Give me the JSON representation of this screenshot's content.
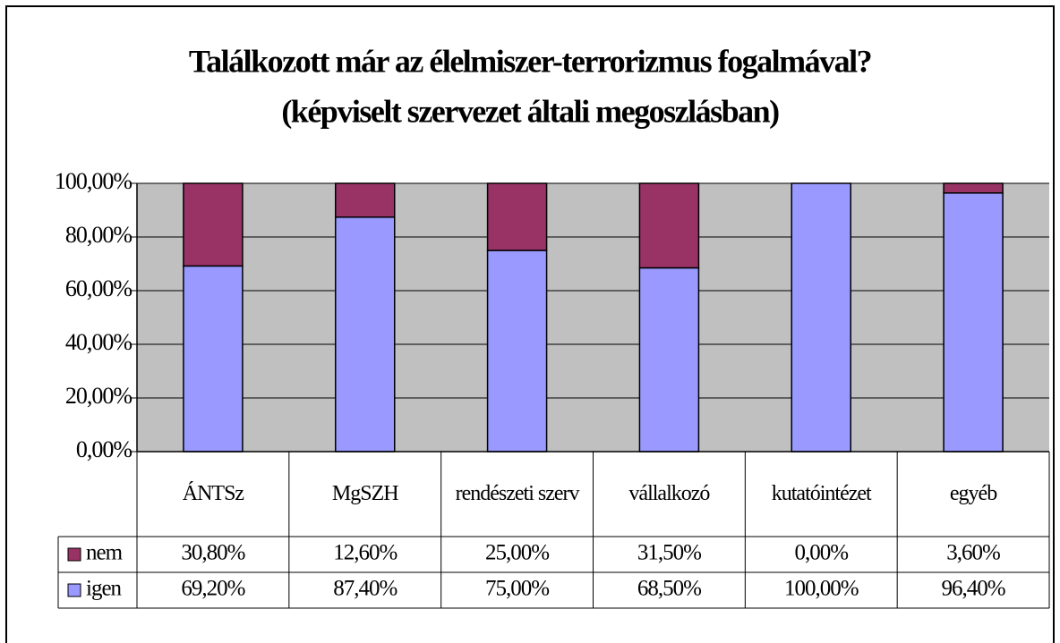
{
  "chart_data": {
    "type": "bar",
    "stacked": true,
    "title": "Találkozott már az élelmiszer-terrorizmus fogalmával?",
    "subtitle": "(képviselt szervezet általi megoszlásban)",
    "categories": [
      "ÁNTSz",
      "MgSZH",
      "rendészeti szerv",
      "vállalkozó",
      "kutatóintézet",
      "egyéb"
    ],
    "series": [
      {
        "name": "igen",
        "color": "#9999ff",
        "values": [
          69.2,
          87.4,
          75,
          68.5,
          100,
          96.4
        ],
        "value_labels": [
          "69,20%",
          "87,40%",
          "75,00%",
          "68,50%",
          "100,00%",
          "96,40%"
        ]
      },
      {
        "name": "nem",
        "color": "#993366",
        "values": [
          30.8,
          12.6,
          25,
          31.5,
          0,
          3.6
        ],
        "value_labels": [
          "30,80%",
          "12,60%",
          "25,00%",
          "31,50%",
          "0,00%",
          "3,60%"
        ]
      }
    ],
    "ylim": [
      0,
      100
    ],
    "yticks": [
      {
        "value": 0,
        "label": "0,00%"
      },
      {
        "value": 20,
        "label": "20,00%"
      },
      {
        "value": 40,
        "label": "40,00%"
      },
      {
        "value": 60,
        "label": "60,00%"
      },
      {
        "value": 80,
        "label": "80,00%"
      },
      {
        "value": 100,
        "label": "100,00%"
      }
    ],
    "grid": true,
    "plot_background": "#c0c0c0"
  }
}
